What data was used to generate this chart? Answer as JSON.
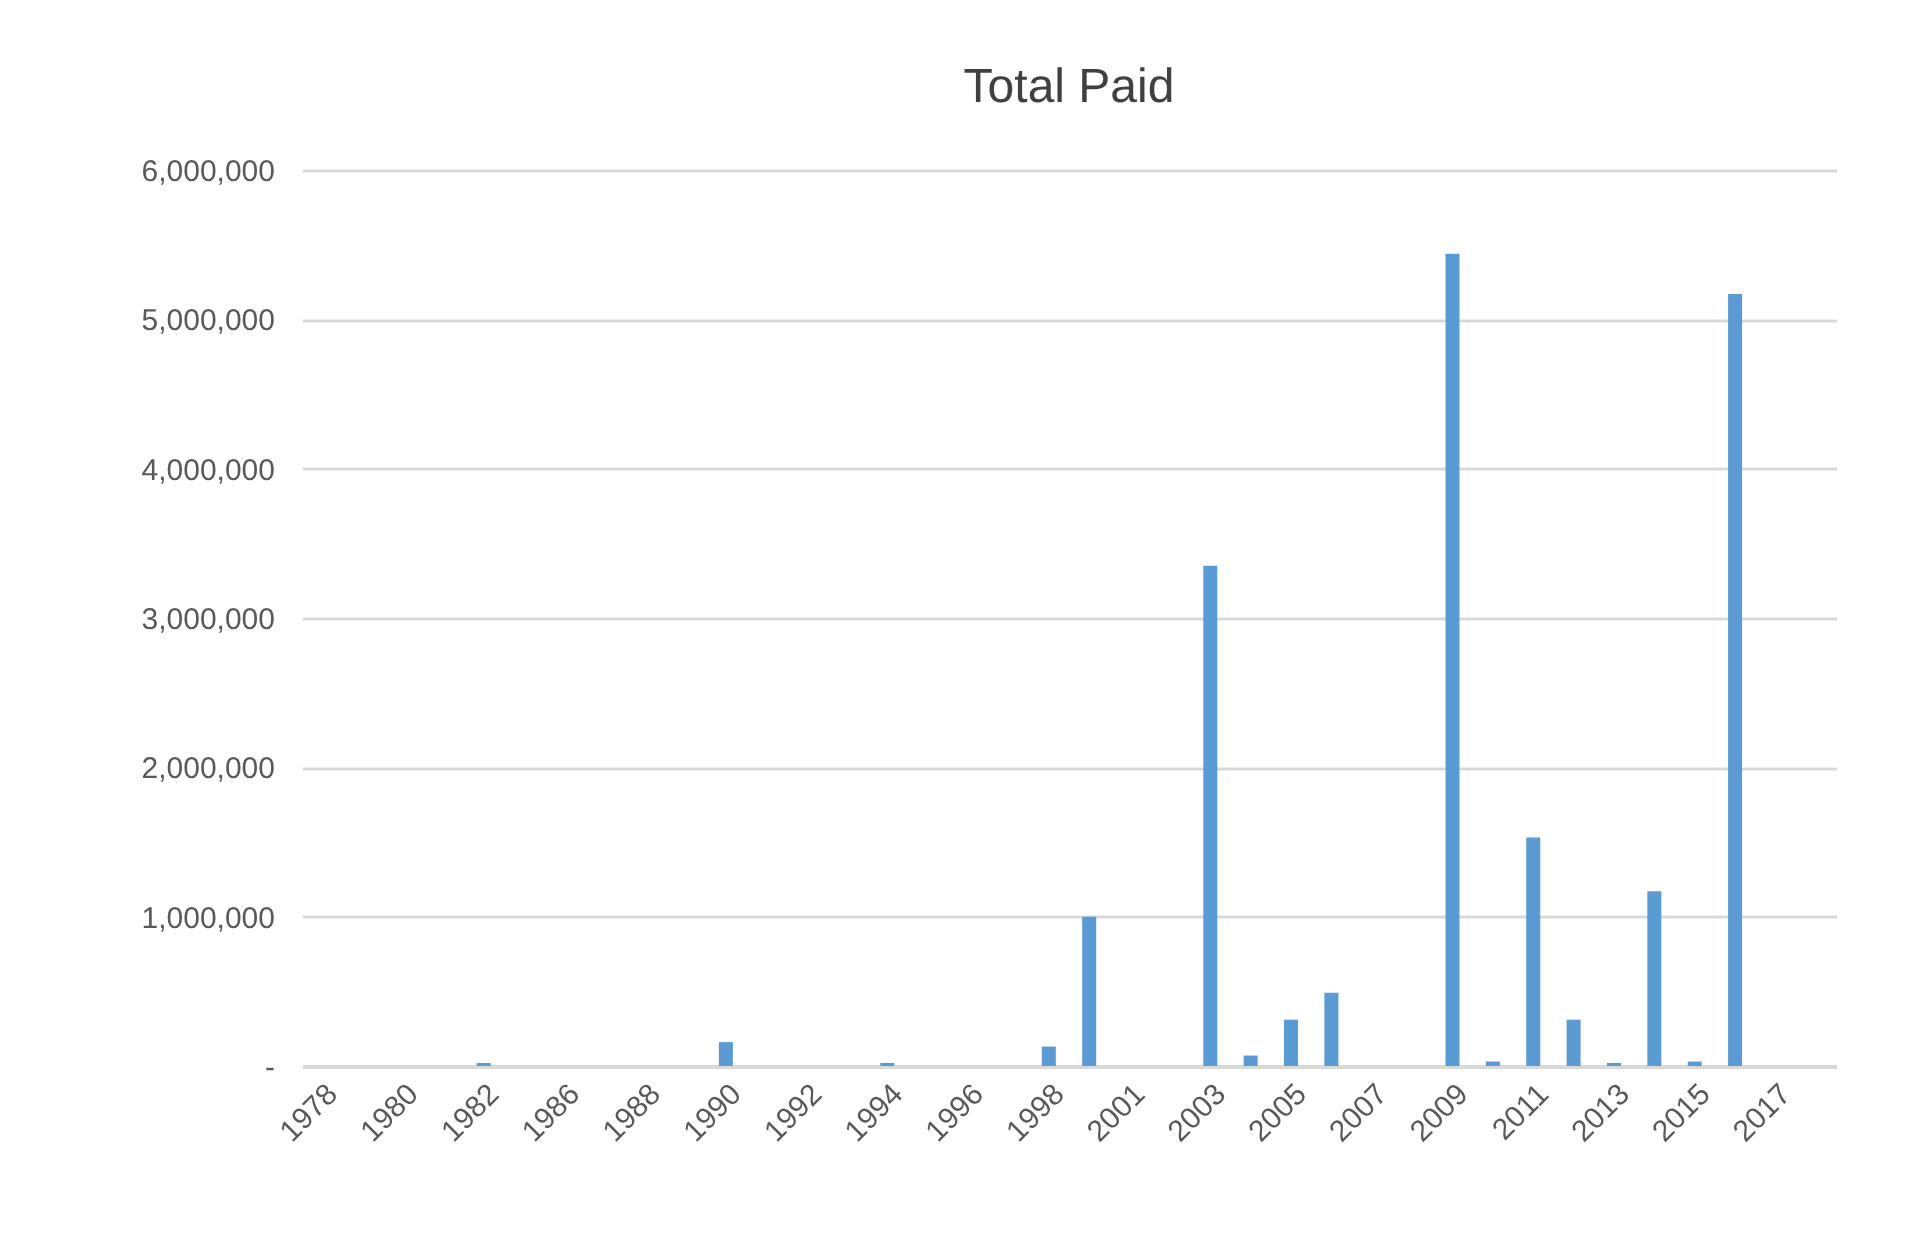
{
  "chart_data": {
    "type": "bar",
    "title": "Total Paid",
    "categories": [
      "1978",
      null,
      "1980",
      null,
      "1982",
      null,
      "1986",
      null,
      "1988",
      null,
      "1990",
      null,
      "1992",
      null,
      "1994",
      null,
      "1996",
      null,
      "1998",
      null,
      "2001",
      null,
      "2003",
      null,
      "2005",
      null,
      "2007",
      null,
      "2009",
      null,
      "2011",
      null,
      "2013",
      null,
      "2015",
      null,
      "2017",
      null
    ],
    "values": [
      0,
      0,
      0,
      0,
      20000,
      0,
      0,
      0,
      0,
      0,
      160000,
      0,
      0,
      0,
      20000,
      0,
      0,
      0,
      130000,
      1000000,
      0,
      0,
      3350000,
      70000,
      310000,
      490000,
      0,
      0,
      5440000,
      30000,
      1530000,
      310000,
      20000,
      1170000,
      30000,
      5170000,
      0,
      0
    ],
    "color": "#5b9bd5",
    "ylim": [
      0,
      6000000
    ],
    "yticks": [
      {
        "value": 0,
        "label": "-"
      },
      {
        "value": 1000000,
        "label": "1,000,000"
      },
      {
        "value": 2000000,
        "label": "2,000,000"
      },
      {
        "value": 3000000,
        "label": "3,000,000"
      },
      {
        "value": 4000000,
        "label": "4,000,000"
      },
      {
        "value": 5000000,
        "label": "5,000,000"
      },
      {
        "value": 6000000,
        "label": "6,000,000"
      }
    ],
    "grid": "y"
  }
}
